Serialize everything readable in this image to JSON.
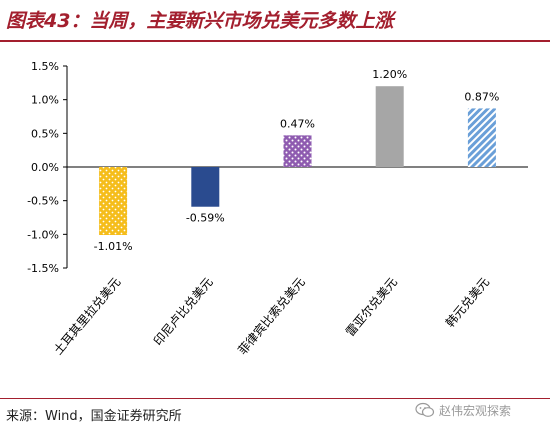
{
  "header": {
    "title": "图表43：当周，主要新兴市场兑美元多数上涨"
  },
  "footer": {
    "source": "来源：Wind，国金证券研究所",
    "watermark": "赵伟宏观探索"
  },
  "chart_data": {
    "type": "bar",
    "categories": [
      "土耳其里拉兑美元",
      "印尼卢比兑美元",
      "菲律宾比索兑美元",
      "雷亚尔兑美元",
      "韩元兑美元"
    ],
    "values": [
      -1.01,
      -0.59,
      0.47,
      1.2,
      0.87
    ],
    "data_labels": [
      "-1.01%",
      "-0.59%",
      "0.47%",
      "1.20%",
      "0.87%"
    ],
    "ylim": [
      -1.5,
      1.5
    ],
    "yticks": [
      1.5,
      1.0,
      0.5,
      0.0,
      -0.5,
      -1.0,
      -1.5
    ],
    "ytick_labels": [
      "1.5%",
      "1.0%",
      "0.5%",
      "0.0%",
      "-0.5%",
      "-1.0%",
      "-1.5%"
    ],
    "bar_fills": [
      "dots-gold",
      "solid-navy",
      "dots-purple",
      "solid-gray",
      "diagonal-blue"
    ],
    "colors": {
      "gold": "#f5bd1b",
      "navy": "#2a4b8f",
      "purple": "#8e5bb0",
      "gray": "#a6a6a6",
      "blue": "#6a9fd8",
      "title": "#a31f2e"
    },
    "grid": false,
    "legend": "none"
  }
}
